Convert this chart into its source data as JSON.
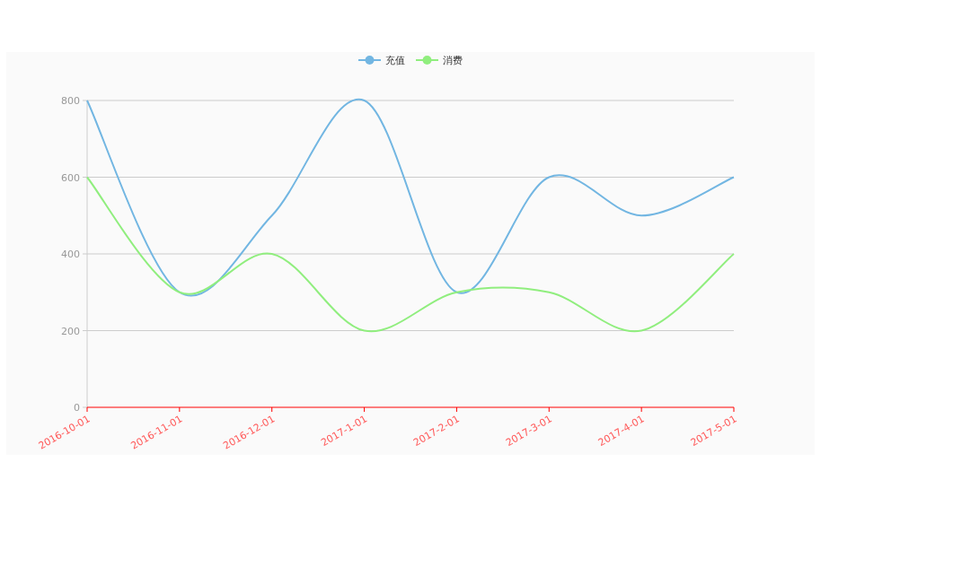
{
  "chart_data": {
    "type": "line",
    "categories": [
      "2016-10-01",
      "2016-11-01",
      "2016-12-01",
      "2017-1-01",
      "2017-2-01",
      "2017-3-01",
      "2017-4-01",
      "2017-5-01"
    ],
    "series": [
      {
        "name": "充值",
        "color": "#72b6e2",
        "values": [
          800,
          300,
          500,
          800,
          300,
          600,
          500,
          600
        ]
      },
      {
        "name": "消费",
        "color": "#90ee7e",
        "values": [
          600,
          300,
          400,
          200,
          300,
          300,
          200,
          400
        ]
      }
    ],
    "ylim": [
      0,
      800
    ],
    "yticks": [
      0,
      200,
      400,
      600,
      800
    ],
    "grid": "y",
    "legend": "top"
  }
}
